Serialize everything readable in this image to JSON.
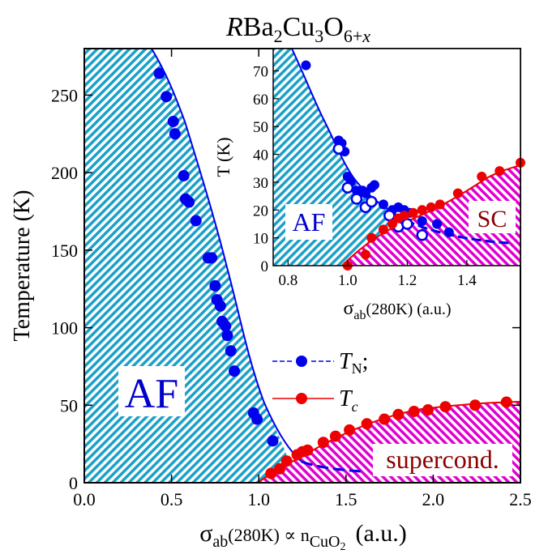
{
  "chart_data": {
    "type": "scatter",
    "title": {
      "italic": "R",
      "base": "Ba",
      "sub1": "2",
      "mid": "Cu",
      "sub2": "3",
      "o": "O",
      "sub3": "6+",
      "subx": "x"
    },
    "main": {
      "xlabel": {
        "sigma": "σ",
        "sub": "ab",
        "arg": "(280K) ∝ n",
        "sub2": "CuO",
        "sub3": "2",
        "unit": "(a.u.)"
      },
      "ylabel": "Temperature  (K)",
      "xlim": [
        0.0,
        2.5
      ],
      "ylim": [
        0,
        280
      ],
      "xticks": [
        "0.0",
        "0.5",
        "1.0",
        "1.5",
        "2.0",
        "2.5"
      ],
      "xtick_values": [
        0.0,
        0.5,
        1.0,
        1.5,
        2.0,
        2.5
      ],
      "yticks": [
        "0",
        "50",
        "100",
        "150",
        "200",
        "250"
      ],
      "ytick_values": [
        0,
        50,
        100,
        150,
        200,
        250
      ],
      "region_labels": {
        "af": "AF",
        "sc": "supercond."
      },
      "legend": {
        "tn_label": "T",
        "tn_sub": "N",
        "tn_suffix": ";",
        "tc_label": "T",
        "tc_sub": "c"
      },
      "series": [
        {
          "name": "T_N",
          "color": "#0000ee",
          "points": [
            [
              0.43,
              264
            ],
            [
              0.47,
              249
            ],
            [
              0.51,
              233
            ],
            [
              0.52,
              225
            ],
            [
              0.57,
              198
            ],
            [
              0.58,
              183
            ],
            [
              0.6,
              181
            ],
            [
              0.64,
              169
            ],
            [
              0.71,
              145
            ],
            [
              0.73,
              145
            ],
            [
              0.75,
              127
            ],
            [
              0.76,
              118
            ],
            [
              0.78,
              114
            ],
            [
              0.79,
              104
            ],
            [
              0.81,
              101
            ],
            [
              0.82,
              95
            ],
            [
              0.84,
              85
            ],
            [
              0.86,
              72
            ],
            [
              0.97,
              45
            ],
            [
              0.99,
              41
            ],
            [
              1.08,
              27
            ]
          ]
        },
        {
          "name": "T_c",
          "color": "#ee0000",
          "points": [
            [
              1.07,
              6
            ],
            [
              1.12,
              9
            ],
            [
              1.16,
              14
            ],
            [
              1.22,
              18
            ],
            [
              1.25,
              20
            ],
            [
              1.28,
              21
            ],
            [
              1.37,
              26
            ],
            [
              1.44,
              30
            ],
            [
              1.52,
              34
            ],
            [
              1.62,
              38
            ],
            [
              1.72,
              41
            ],
            [
              1.8,
              44
            ],
            [
              1.89,
              46
            ],
            [
              1.97,
              47
            ],
            [
              2.07,
              49
            ],
            [
              2.24,
              50
            ],
            [
              2.42,
              52
            ]
          ]
        }
      ]
    },
    "inset": {
      "xlabel": {
        "sigma": "σ",
        "sub": "ab",
        "arg": "(280K) (a.u.)"
      },
      "ylabel": "T  (K)",
      "xlim": [
        0.75,
        1.58
      ],
      "ylim": [
        0,
        78
      ],
      "xticks": [
        "0.8",
        "1.0",
        "1.2",
        "1.4"
      ],
      "xtick_values": [
        0.8,
        1.0,
        1.2,
        1.4
      ],
      "yticks": [
        "0",
        "10",
        "20",
        "30",
        "40",
        "50",
        "60",
        "70"
      ],
      "ytick_values": [
        0,
        10,
        20,
        30,
        40,
        50,
        60,
        70
      ],
      "region_labels": {
        "af": "AF",
        "sc": "SC"
      },
      "series": [
        {
          "name": "T_N filled",
          "color": "#0000ee",
          "filled": true,
          "points": [
            [
              0.86,
              72
            ],
            [
              0.97,
              45
            ],
            [
              0.98,
              44
            ],
            [
              0.99,
              41
            ],
            [
              1.0,
              32
            ],
            [
              1.01,
              30
            ],
            [
              1.03,
              27
            ],
            [
              1.05,
              27
            ],
            [
              1.06,
              26
            ],
            [
              1.08,
              28
            ],
            [
              1.09,
              29
            ],
            [
              1.12,
              22
            ],
            [
              1.15,
              20
            ],
            [
              1.17,
              21
            ],
            [
              1.19,
              20
            ],
            [
              1.21,
              19
            ],
            [
              1.25,
              16
            ],
            [
              1.3,
              15
            ],
            [
              1.34,
              12
            ]
          ]
        },
        {
          "name": "T_N open",
          "color": "#0000ee",
          "filled": false,
          "points": [
            [
              0.97,
              42
            ],
            [
              1.0,
              28
            ],
            [
              1.03,
              24
            ],
            [
              1.06,
              21
            ],
            [
              1.08,
              23
            ],
            [
              1.14,
              18
            ],
            [
              1.17,
              14
            ],
            [
              1.2,
              15
            ],
            [
              1.25,
              11
            ]
          ]
        },
        {
          "name": "T_c",
          "color": "#ee0000",
          "filled": true,
          "points": [
            [
              1.0,
              0
            ],
            [
              1.06,
              4
            ],
            [
              1.08,
              10
            ],
            [
              1.12,
              13
            ],
            [
              1.15,
              15
            ],
            [
              1.17,
              17
            ],
            [
              1.19,
              18
            ],
            [
              1.22,
              19
            ],
            [
              1.25,
              20
            ],
            [
              1.28,
              21
            ],
            [
              1.31,
              22
            ],
            [
              1.37,
              26
            ],
            [
              1.45,
              32
            ],
            [
              1.51,
              34
            ],
            [
              1.58,
              37
            ]
          ]
        }
      ]
    }
  }
}
